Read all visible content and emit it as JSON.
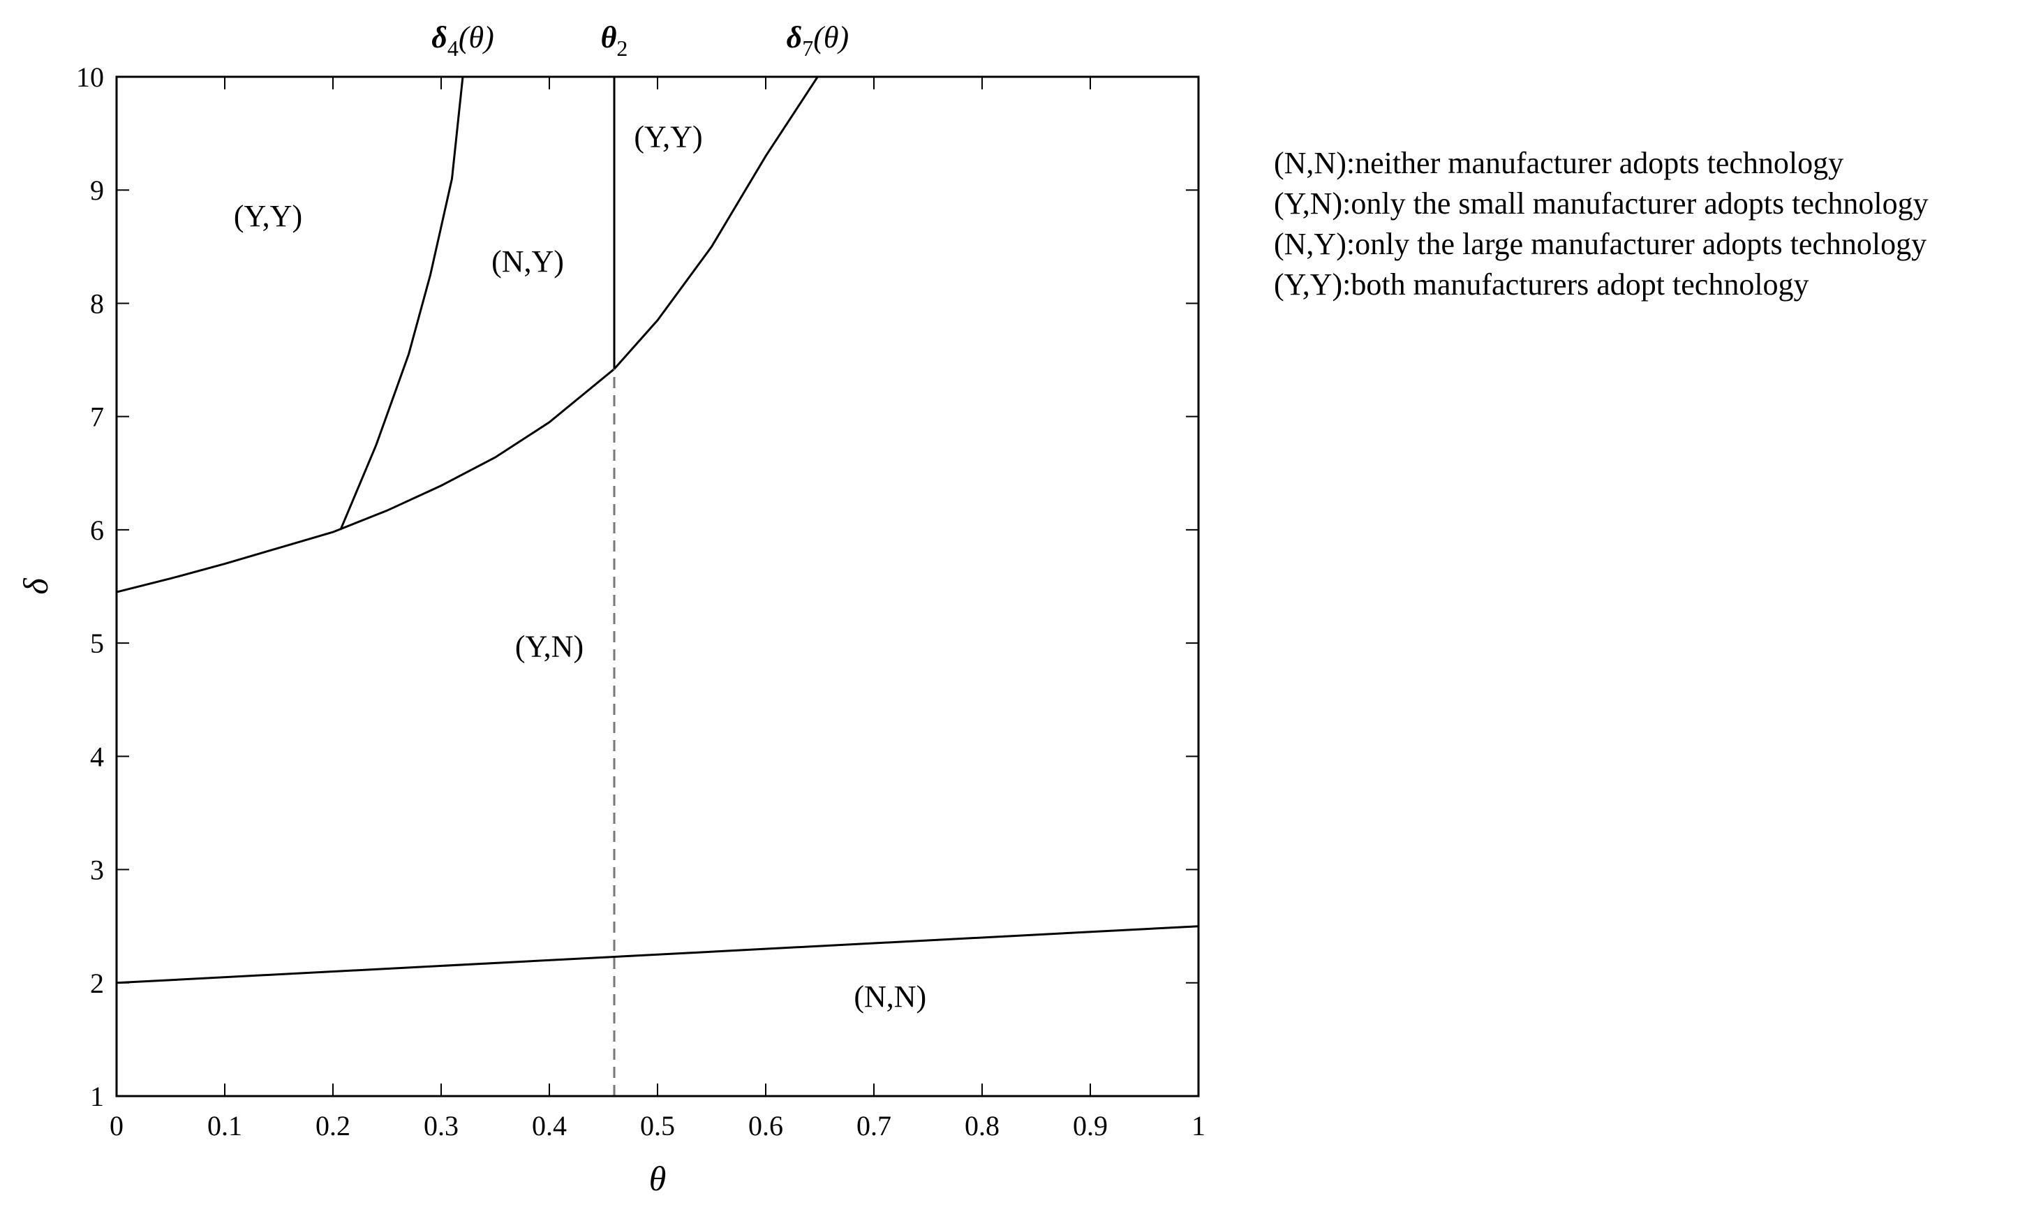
{
  "chart_data": {
    "type": "line",
    "xlabel": "θ",
    "ylabel": "δ",
    "xlim": [
      0,
      1
    ],
    "ylim": [
      1,
      10
    ],
    "xticks": [
      "0",
      "0.1",
      "0.2",
      "0.3",
      "0.4",
      "0.5",
      "0.6",
      "0.7",
      "0.8",
      "0.9",
      "1"
    ],
    "yticks": [
      "1",
      "2",
      "3",
      "4",
      "5",
      "6",
      "7",
      "8",
      "9",
      "10"
    ],
    "grid": false,
    "series": [
      {
        "key": "delta7",
        "label_main": "δ",
        "label_sub": "7",
        "label_tail": "(θ)",
        "style": "solid",
        "x": [
          0,
          0.05,
          0.1,
          0.15,
          0.2,
          0.25,
          0.3,
          0.35,
          0.4,
          0.46,
          0.5,
          0.55,
          0.6,
          0.648
        ],
        "y": [
          5.45,
          5.57,
          5.7,
          5.84,
          5.98,
          6.17,
          6.39,
          6.64,
          6.95,
          7.42,
          7.85,
          8.5,
          9.3,
          10.0
        ]
      },
      {
        "key": "delta4",
        "label_main": "δ",
        "label_sub": "4",
        "label_tail": "(θ)",
        "style": "solid",
        "x": [
          0.207,
          0.24,
          0.27,
          0.29,
          0.31,
          0.32
        ],
        "y": [
          6.0,
          6.75,
          7.55,
          8.25,
          9.1,
          10.0
        ]
      },
      {
        "key": "theta2_solid",
        "label_main": "θ",
        "label_sub": "2",
        "label_tail": "",
        "style": "solid",
        "x": [
          0.46,
          0.46
        ],
        "y": [
          7.42,
          10.0
        ]
      },
      {
        "key": "theta2_dashed",
        "style": "dashed",
        "x": [
          0.46,
          0.46
        ],
        "y": [
          1.0,
          7.42
        ]
      },
      {
        "key": "lower_line",
        "style": "solid",
        "x": [
          0,
          1
        ],
        "y": [
          2.0,
          2.5
        ]
      }
    ],
    "regions": [
      {
        "text": "(Y,Y)",
        "x": 0.14,
        "y": 8.68
      },
      {
        "text": "(N,Y)",
        "x": 0.38,
        "y": 8.28
      },
      {
        "text": "(Y,Y)",
        "x": 0.51,
        "y": 9.38
      },
      {
        "text": "(Y,N)",
        "x": 0.4,
        "y": 4.88
      },
      {
        "text": "(N,N)",
        "x": 0.715,
        "y": 1.79
      }
    ],
    "legend_position": "right-top",
    "legend": [
      "(N,N):neither manufacturer adopts technology",
      "(Y,N):only the small manufacturer adopts technology",
      "(N,Y):only the large manufacturer adopts technology",
      "(Y,Y):both manufacturers adopt technology"
    ]
  }
}
